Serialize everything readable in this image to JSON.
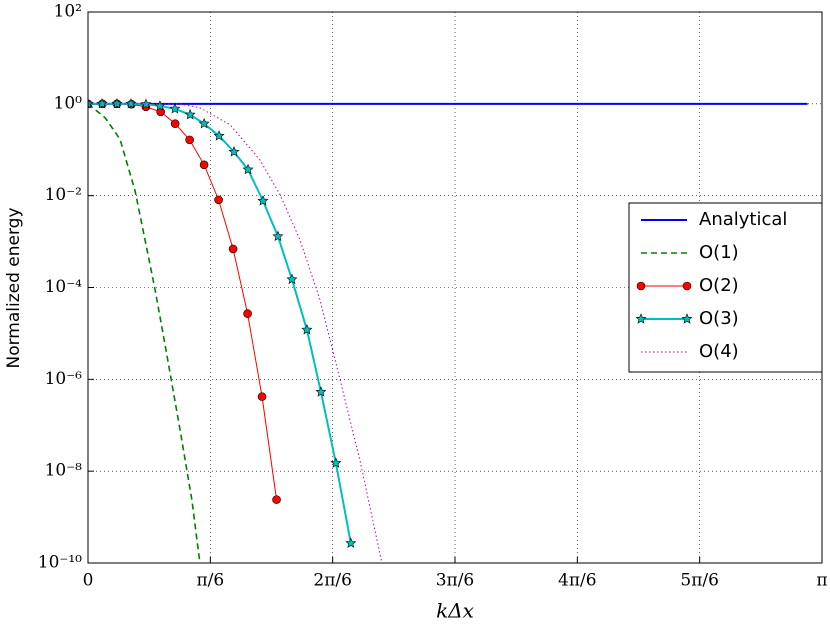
{
  "chart_data": {
    "type": "line",
    "ylabel": "Normalized energy",
    "xlabel": "kΔx",
    "log_y": true,
    "grid": true,
    "legend": "right",
    "xlim": [
      0,
      3.1416
    ],
    "ylim": [
      1e-10,
      100
    ],
    "xticks": [
      {
        "value": 0,
        "label": "0"
      },
      {
        "value": 0.5236,
        "label": "π/6"
      },
      {
        "value": 1.0472,
        "label": "2π/6"
      },
      {
        "value": 1.5708,
        "label": "3π/6"
      },
      {
        "value": 2.0944,
        "label": "4π/6"
      },
      {
        "value": 2.618,
        "label": "5π/6"
      },
      {
        "value": 3.1416,
        "label": "π"
      }
    ],
    "yticks": [
      {
        "value": 100,
        "label": "10²"
      },
      {
        "value": 1,
        "label": "10⁰"
      },
      {
        "value": 0.01,
        "label": "10⁻²"
      },
      {
        "value": 0.0001,
        "label": "10⁻⁴"
      },
      {
        "value": 1e-06,
        "label": "10⁻⁶"
      },
      {
        "value": 1e-08,
        "label": "10⁻⁸"
      },
      {
        "value": 1e-10,
        "label": "10⁻¹⁰"
      }
    ],
    "series": [
      {
        "name": "Analytical",
        "color": "#0000ff",
        "linestyle": "solid",
        "linewidth": 2,
        "marker": "none",
        "x": [
          0,
          3.08
        ],
        "values": [
          1,
          1
        ]
      },
      {
        "name": "O(1)",
        "color": "#008000",
        "linestyle": "dashed",
        "linewidth": 1.6,
        "marker": "none",
        "x": [
          0,
          0.073,
          0.137,
          0.201,
          0.244,
          0.287,
          0.33,
          0.394,
          0.445,
          0.479
        ],
        "values": [
          1,
          0.5,
          0.17,
          0.013,
          0.0011,
          9e-05,
          5.6e-06,
          8e-08,
          2.3e-09,
          1e-10
        ]
      },
      {
        "name": "O(2)",
        "color": "#ff0000",
        "linestyle": "solid",
        "linewidth": 1,
        "marker": "circle",
        "x": [
          0,
          0.062,
          0.124,
          0.186,
          0.248,
          0.311,
          0.373,
          0.435,
          0.497,
          0.559,
          0.621,
          0.683,
          0.745,
          0.807
        ],
        "values": [
          1,
          1,
          1,
          0.98,
          0.86,
          0.67,
          0.37,
          0.164,
          0.047,
          0.0081,
          0.00069,
          2.7e-05,
          4.2e-07,
          2.4e-09
        ]
      },
      {
        "name": "O(3)",
        "color": "#00bfbf",
        "linestyle": "solid",
        "linewidth": 2,
        "marker": "star",
        "x": [
          0,
          0.06,
          0.124,
          0.184,
          0.248,
          0.308,
          0.372,
          0.437,
          0.497,
          0.561,
          0.625,
          0.685,
          0.749,
          0.813,
          0.873,
          0.937,
          0.997,
          1.061,
          1.125
        ],
        "values": [
          1,
          1,
          1,
          1,
          0.98,
          0.9,
          0.78,
          0.58,
          0.37,
          0.2,
          0.09,
          0.037,
          0.0077,
          0.0013,
          0.00015,
          1.2e-05,
          5.3e-07,
          1.5e-08,
          2.7e-10
        ]
      },
      {
        "name": "O(4)",
        "color": "#bf00bf",
        "linestyle": "dotted",
        "linewidth": 1,
        "marker": "none",
        "x": [
          0,
          0.394,
          0.479,
          0.608,
          0.736,
          0.822,
          0.907,
          0.993,
          1.079,
          1.164,
          1.228,
          1.258
        ],
        "values": [
          1,
          0.99,
          0.82,
          0.35,
          0.06,
          0.0105,
          0.0011,
          5.4e-05,
          9.8e-07,
          1.7e-08,
          5.2e-10,
          1e-10
        ]
      }
    ]
  }
}
